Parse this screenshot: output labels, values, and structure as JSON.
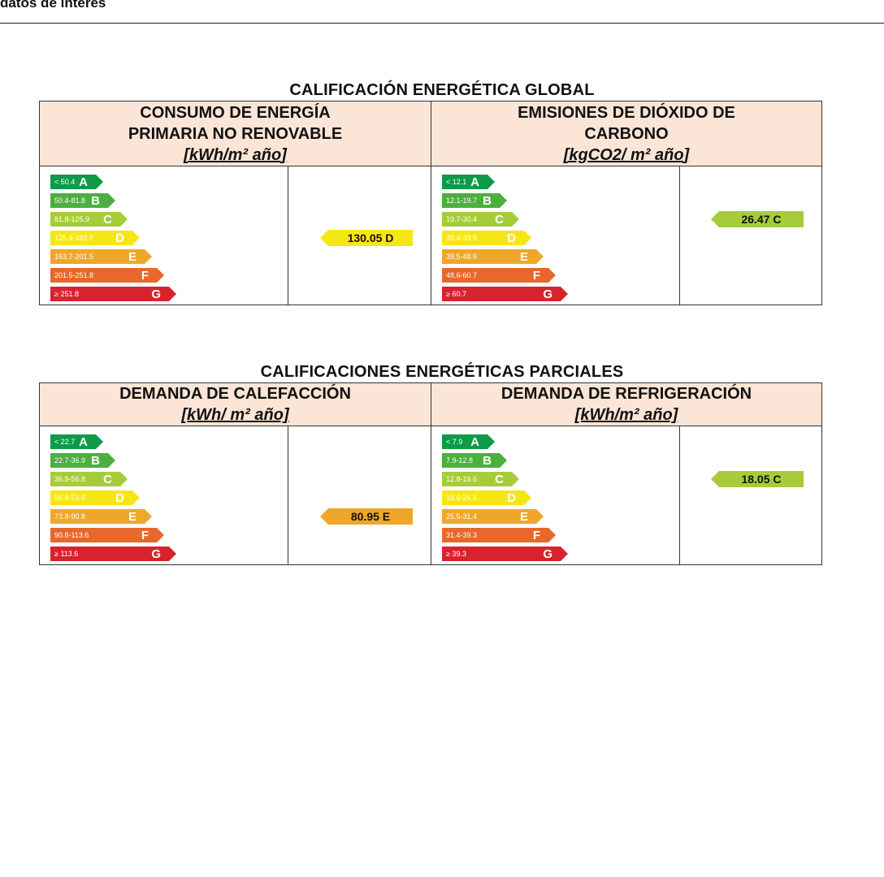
{
  "page_header": "datos de interés",
  "colors": {
    "A": "#0e9a48",
    "B": "#4caf3f",
    "C": "#a6cc3a",
    "D": "#f7e616",
    "E": "#efa729",
    "F": "#e7682a",
    "G": "#d8232f",
    "header_bg": "#fbe5d6"
  },
  "global": {
    "title": "CALIFICACIÓN ENERGÉTICA GLOBAL",
    "left": {
      "head_line1": "CONSUMO DE ENERGÍA",
      "head_line2": "PRIMARIA NO RENOVABLE",
      "unit": "[kWh/m² año]",
      "ranges": [
        "< 50.4",
        "50.4-81.8",
        "81.8-125.9",
        "125.9-163.7",
        "163.7-201.5",
        "201.5-251.8",
        "≥ 251.8"
      ],
      "rating_value": "130.05 D",
      "rating_letter": "D"
    },
    "right": {
      "head_line1": "EMISIONES DE DIÓXIDO DE",
      "head_line2": "CARBONO",
      "unit": "[kgCO2/ m² año]",
      "ranges": [
        "< 12.1",
        "12.1-19.7",
        "19.7-30.4",
        "30.4-39.5",
        "39.5-48.6",
        "48.6-60.7",
        "≥ 60.7"
      ],
      "rating_value": "26.47 C",
      "rating_letter": "C"
    }
  },
  "partial": {
    "title": "CALIFICACIONES ENERGÉTICAS PARCIALES",
    "left": {
      "head_line1": "DEMANDA DE CALEFACCIÓN",
      "head_line2": "",
      "unit": "[kWh/ m² año]",
      "ranges": [
        "< 22.7",
        "22.7-36.9",
        "36.9-56.8",
        "56.8-73.8",
        "73.8-90.8",
        "90.8-113.6",
        "≥ 113.6"
      ],
      "rating_value": "80.95 E",
      "rating_letter": "E"
    },
    "right": {
      "head_line1": "DEMANDA DE REFRIGERACIÓN",
      "head_line2": "",
      "unit": "[kWh/m² año]",
      "ranges": [
        "< 7.9",
        "7.9-12.8",
        "12.8-19.6",
        "19.6-25.5",
        "25.5-31.4",
        "31.4-39.3",
        "≥ 39.3"
      ],
      "rating_value": "18.05 C",
      "rating_letter": "C"
    }
  },
  "letters": [
    "A",
    "B",
    "C",
    "D",
    "E",
    "F",
    "G"
  ]
}
